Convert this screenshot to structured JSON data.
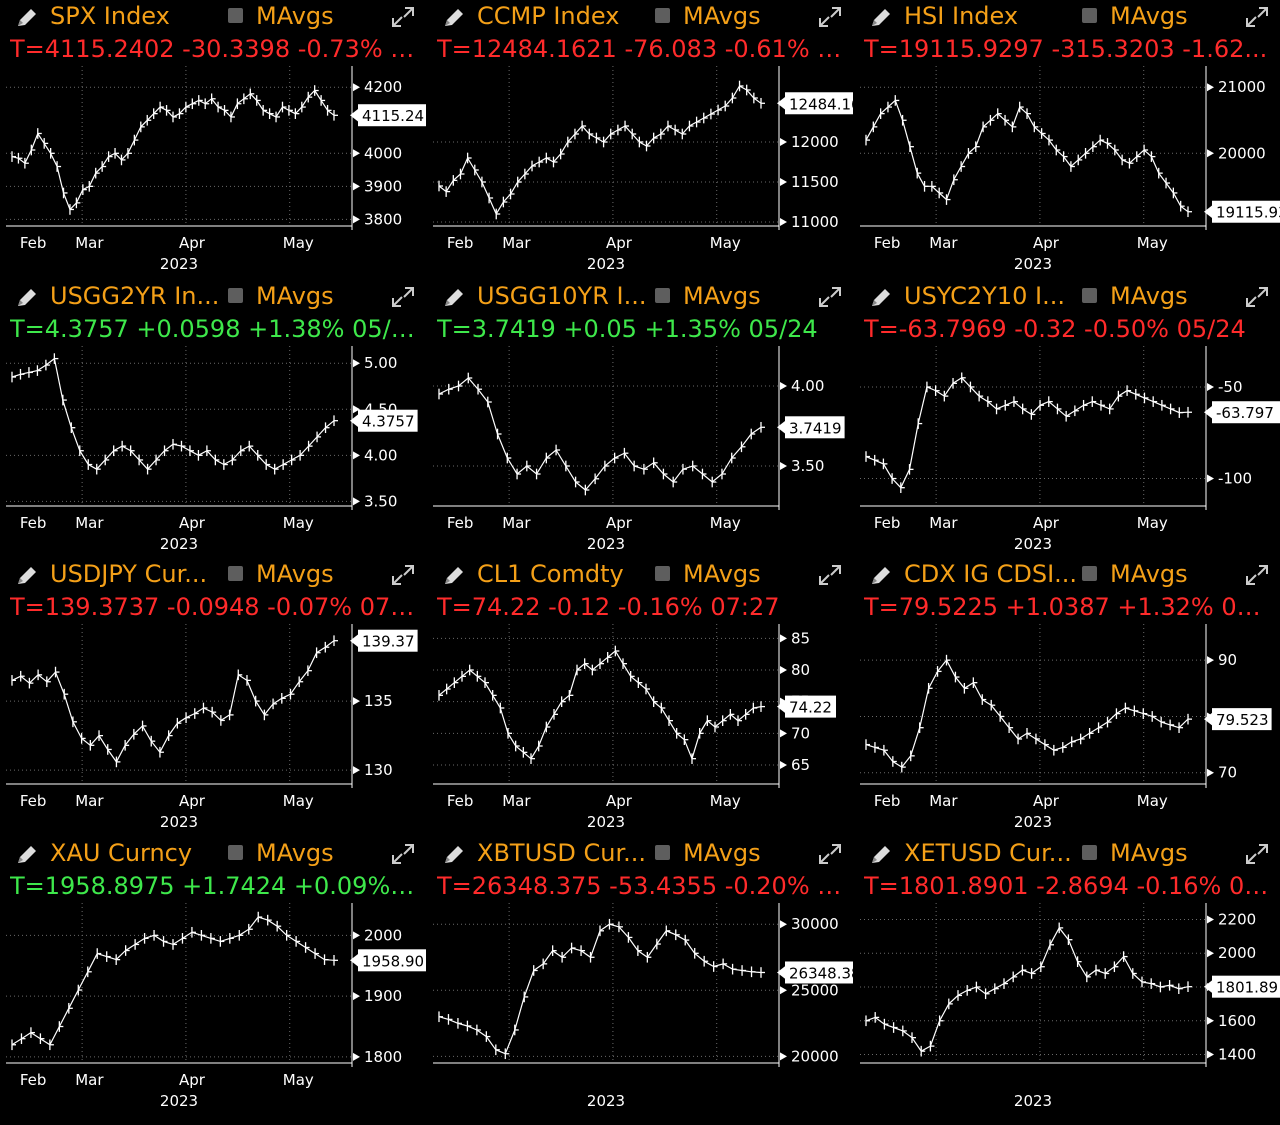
{
  "colors": {
    "title": "#f4a018",
    "up": "#3ee84b",
    "down": "#ff2b2b",
    "grid": "#6a6a6a",
    "axis": "#ffffff"
  },
  "icons": {
    "edit": "pencil-icon",
    "expand": "expand-arrows-icon",
    "toggle": "checkbox-icon"
  },
  "panels": [
    {
      "id": "spx",
      "title": "SPX Index",
      "mavgs": "MAvgs",
      "quote": "T=4115.2402 -30.3398 -0.73% 0...",
      "direction": "down",
      "chart_data": {
        "type": "line",
        "x_ticks": [
          "Feb",
          "Mar",
          "Apr",
          "May"
        ],
        "year": "2023",
        "ylim": [
          3780,
          4240
        ],
        "y_ticks": [
          3800,
          3900,
          4000,
          4200
        ],
        "last": 4115.24,
        "last_label": "4115.24",
        "values": [
          3990,
          3985,
          3970,
          4010,
          4060,
          4030,
          4000,
          3960,
          3880,
          3830,
          3850,
          3890,
          3900,
          3940,
          3960,
          3990,
          4000,
          3980,
          4000,
          4040,
          4080,
          4100,
          4120,
          4140,
          4130,
          4110,
          4120,
          4140,
          4150,
          4160,
          4150,
          4165,
          4140,
          4130,
          4110,
          4150,
          4165,
          4180,
          4160,
          4130,
          4120,
          4110,
          4140,
          4130,
          4120,
          4140,
          4170,
          4190,
          4160,
          4130,
          4115
        ]
      }
    },
    {
      "id": "ccmp",
      "title": "CCMP Index",
      "mavgs": "MAvgs",
      "quote": "T=12484.1621 -76.083 -0.61% 0...",
      "direction": "down",
      "chart_data": {
        "type": "line",
        "x_ticks": [
          "Feb",
          "Mar",
          "Apr",
          "May"
        ],
        "year": "2023",
        "ylim": [
          10950,
          12850
        ],
        "y_ticks": [
          11000,
          11500,
          12000
        ],
        "last": 12484.16,
        "last_label": "12484.16",
        "values": [
          11450,
          11380,
          11520,
          11600,
          11800,
          11650,
          11500,
          11300,
          11100,
          11250,
          11350,
          11500,
          11600,
          11700,
          11750,
          11800,
          11750,
          11850,
          12000,
          12100,
          12200,
          12100,
          12050,
          12000,
          12100,
          12150,
          12200,
          12100,
          12000,
          11950,
          12050,
          12100,
          12200,
          12150,
          12100,
          12200,
          12250,
          12300,
          12350,
          12400,
          12450,
          12550,
          12700,
          12650,
          12550,
          12484
        ]
      }
    },
    {
      "id": "hsi",
      "title": "HSI Index",
      "mavgs": "MAvgs",
      "quote": "T=19115.9297 -315.3203 -1.62...",
      "direction": "down",
      "chart_data": {
        "type": "line",
        "x_ticks": [
          "Feb",
          "Mar",
          "Apr",
          "May"
        ],
        "year": "2023",
        "ylim": [
          18900,
          21200
        ],
        "y_ticks": [
          20000,
          21000
        ],
        "last": 19115.93,
        "last_label": "19115.93",
        "values": [
          20200,
          20400,
          20600,
          20700,
          20800,
          20500,
          20100,
          19700,
          19500,
          19500,
          19400,
          19300,
          19600,
          19800,
          20000,
          20100,
          20400,
          20500,
          20600,
          20500,
          20400,
          20700,
          20600,
          20400,
          20300,
          20200,
          20050,
          19950,
          19800,
          19900,
          20000,
          20100,
          20200,
          20150,
          20050,
          19900,
          19850,
          19950,
          20050,
          19950,
          19700,
          19550,
          19400,
          19200,
          19116
        ]
      }
    },
    {
      "id": "usgg2yr",
      "title": "USGG2YR In...",
      "mavgs": "MAvgs",
      "quote": "T=4.3757 +0.0598 +1.38% 05/24",
      "direction": "up",
      "chart_data": {
        "type": "line",
        "x_ticks": [
          "Feb",
          "Mar",
          "Apr",
          "May"
        ],
        "year": "2023",
        "ylim": [
          3.45,
          5.1
        ],
        "y_ticks": [
          3.5,
          4.0,
          4.5,
          5.0
        ],
        "y_tick_labels": [
          "3.50",
          "4.00",
          "4.50",
          "5.00"
        ],
        "last": 4.3757,
        "last_label": "4.3757",
        "values": [
          4.85,
          4.88,
          4.9,
          4.92,
          4.98,
          5.05,
          4.6,
          4.3,
          4.05,
          3.9,
          3.85,
          3.95,
          4.05,
          4.1,
          4.05,
          3.95,
          3.85,
          3.95,
          4.05,
          4.12,
          4.1,
          4.05,
          4.0,
          4.05,
          3.95,
          3.9,
          3.95,
          4.05,
          4.1,
          4.0,
          3.9,
          3.85,
          3.9,
          3.95,
          4.0,
          4.1,
          4.2,
          4.3,
          4.376
        ]
      }
    },
    {
      "id": "usgg10yr",
      "title": "USGG10YR I...",
      "mavgs": "MAvgs",
      "quote": "T=3.7419 +0.05 +1.35% 05/24",
      "direction": "up",
      "chart_data": {
        "type": "line",
        "x_ticks": [
          "Feb",
          "Mar",
          "Apr",
          "May"
        ],
        "year": "2023",
        "ylim": [
          3.25,
          4.2
        ],
        "y_ticks": [
          3.5,
          4.0
        ],
        "y_tick_labels": [
          "3.50",
          "4.00"
        ],
        "last": 3.7419,
        "last_label": "3.7419",
        "values": [
          3.95,
          3.98,
          4.0,
          4.05,
          3.98,
          3.9,
          3.7,
          3.55,
          3.45,
          3.5,
          3.45,
          3.55,
          3.6,
          3.5,
          3.4,
          3.35,
          3.42,
          3.5,
          3.55,
          3.58,
          3.5,
          3.48,
          3.52,
          3.45,
          3.4,
          3.48,
          3.5,
          3.45,
          3.4,
          3.45,
          3.55,
          3.62,
          3.7,
          3.742
        ]
      }
    },
    {
      "id": "usyc2y10",
      "title": "USYC2Y10 I...",
      "mavgs": "MAvgs",
      "quote": "T=-63.7969 -0.32 -0.50% 05/24",
      "direction": "down",
      "chart_data": {
        "type": "line",
        "x_ticks": [
          "Feb",
          "Mar",
          "Apr",
          "May"
        ],
        "year": "2023",
        "ylim": [
          -115,
          -32
        ],
        "y_ticks": [
          -100,
          -50
        ],
        "last": -63.797,
        "last_label": "-63.797",
        "values": [
          -88,
          -90,
          -92,
          -100,
          -105,
          -95,
          -70,
          -50,
          -52,
          -55,
          -48,
          -45,
          -50,
          -55,
          -58,
          -62,
          -60,
          -58,
          -62,
          -65,
          -60,
          -58,
          -62,
          -66,
          -63,
          -60,
          -58,
          -60,
          -62,
          -55,
          -52,
          -54,
          -56,
          -58,
          -60,
          -62,
          -64,
          -63.8
        ]
      }
    },
    {
      "id": "usdjpy",
      "title": "USDJPY Cur...",
      "mavgs": "MAvgs",
      "quote": "T=139.3737 -0.0948 -0.07% 07:...",
      "direction": "down",
      "chart_data": {
        "type": "line",
        "x_ticks": [
          "Feb",
          "Mar",
          "Apr",
          "May"
        ],
        "year": "2023",
        "ylim": [
          129,
          140
        ],
        "y_ticks": [
          130,
          135
        ],
        "last": 139.37,
        "last_label": "139.37",
        "values": [
          136.5,
          136.8,
          136.3,
          136.9,
          136.4,
          137.1,
          135.5,
          133.5,
          132.3,
          131.8,
          132.5,
          131.5,
          130.6,
          131.8,
          132.6,
          133.2,
          132.1,
          131.3,
          132.5,
          133.4,
          133.8,
          134.1,
          134.5,
          134.2,
          133.6,
          134.0,
          136.9,
          136.5,
          135.0,
          134.0,
          134.8,
          135.2,
          135.5,
          136.4,
          137.2,
          138.5,
          138.9,
          139.37
        ]
      }
    },
    {
      "id": "cl1",
      "title": "CL1 Comdty",
      "mavgs": "MAvgs",
      "quote": "T=74.22 -0.12 -0.16% 07:27",
      "direction": "down",
      "chart_data": {
        "type": "line",
        "x_ticks": [
          "Feb",
          "Mar",
          "Apr",
          "May"
        ],
        "year": "2023",
        "ylim": [
          62,
          86
        ],
        "y_ticks": [
          65,
          70,
          75,
          80,
          85
        ],
        "last": 74.22,
        "last_label": "74.22",
        "values": [
          76,
          77,
          78,
          79,
          80,
          79,
          78,
          76,
          74,
          70,
          68,
          67,
          66,
          68,
          71,
          73,
          75,
          76,
          80,
          81,
          80,
          81,
          82,
          83,
          81,
          79,
          78,
          77,
          75,
          74,
          72,
          70,
          69,
          66,
          70,
          72,
          71,
          72,
          73,
          72,
          73,
          74,
          74.22
        ]
      }
    },
    {
      "id": "cdxig",
      "title": "CDX IG CDSI...",
      "mavgs": "MAvgs",
      "quote": "T=79.5225 +1.0387 +1.32% 05/...",
      "direction": "down",
      "chart_data": {
        "type": "line",
        "x_ticks": [
          "Feb",
          "Mar",
          "Apr",
          "May"
        ],
        "year": "2023",
        "ylim": [
          68,
          95
        ],
        "y_ticks": [
          70,
          80,
          90
        ],
        "last": 79.523,
        "last_label": "79.523",
        "values": [
          75,
          74.5,
          74,
          72,
          71,
          73,
          78,
          85,
          88,
          90,
          87,
          85,
          86,
          83,
          82,
          80,
          78,
          76,
          77,
          76,
          75,
          74,
          74.5,
          75.5,
          76,
          77,
          78,
          79,
          80.5,
          81.5,
          81,
          80.5,
          80,
          79,
          78.5,
          78,
          79.52
        ]
      }
    },
    {
      "id": "xau",
      "title": "XAU Curncy",
      "mavgs": "MAvgs",
      "quote": "T=1958.8975 +1.7424 +0.09% 0...",
      "direction": "up",
      "chart_data": {
        "type": "line",
        "x_ticks": [
          "Feb",
          "Mar",
          "Apr",
          "May"
        ],
        "year": "2023",
        "ylim": [
          1790,
          2040
        ],
        "y_ticks": [
          1800,
          1900,
          2000
        ],
        "last": 1958.9,
        "last_label": "1958.90",
        "values": [
          1820,
          1830,
          1840,
          1830,
          1820,
          1850,
          1880,
          1910,
          1940,
          1970,
          1965,
          1960,
          1975,
          1985,
          1995,
          2000,
          1990,
          1985,
          1995,
          2005,
          2000,
          1995,
          1990,
          1995,
          2000,
          2010,
          2030,
          2025,
          2015,
          2000,
          1990,
          1980,
          1970,
          1960,
          1958.9
        ]
      }
    },
    {
      "id": "xbtusd",
      "title": "XBTUSD Cur...",
      "mavgs": "MAvgs",
      "quote": "T=26348.375 -53.4355 -0.20% 0...",
      "direction": "down",
      "chart_data": {
        "type": "line",
        "x_ticks": [],
        "year": "2023",
        "ylim": [
          19500,
          31000
        ],
        "y_ticks": [
          20000,
          25000,
          30000
        ],
        "last": 26348.38,
        "last_label": "26348.38",
        "values": [
          23000,
          22800,
          22500,
          22300,
          22000,
          21500,
          20500,
          20200,
          22000,
          24500,
          26500,
          27000,
          28000,
          27500,
          28200,
          28000,
          27500,
          29500,
          30000,
          29800,
          29000,
          28000,
          27500,
          28500,
          29500,
          29200,
          28800,
          27800,
          27200,
          26800,
          27000,
          26600,
          26500,
          26400,
          26348
        ]
      }
    },
    {
      "id": "xetusd",
      "title": "XETUSD Cur...",
      "mavgs": "MAvgs",
      "quote": "T=1801.8901 -2.8694 -0.16% 07...",
      "direction": "down",
      "chart_data": {
        "type": "line",
        "x_ticks": [],
        "year": "2023",
        "ylim": [
          1350,
          2250
        ],
        "y_ticks": [
          1400,
          1600,
          1800,
          2000,
          2200
        ],
        "last": 1801.89,
        "last_label": "1801.89",
        "values": [
          1600,
          1620,
          1580,
          1560,
          1540,
          1500,
          1420,
          1450,
          1600,
          1700,
          1750,
          1780,
          1800,
          1760,
          1790,
          1820,
          1860,
          1900,
          1880,
          1920,
          2050,
          2150,
          2080,
          1950,
          1860,
          1900,
          1880,
          1920,
          1980,
          1880,
          1830,
          1820,
          1800,
          1810,
          1790,
          1801.89
        ]
      }
    }
  ]
}
